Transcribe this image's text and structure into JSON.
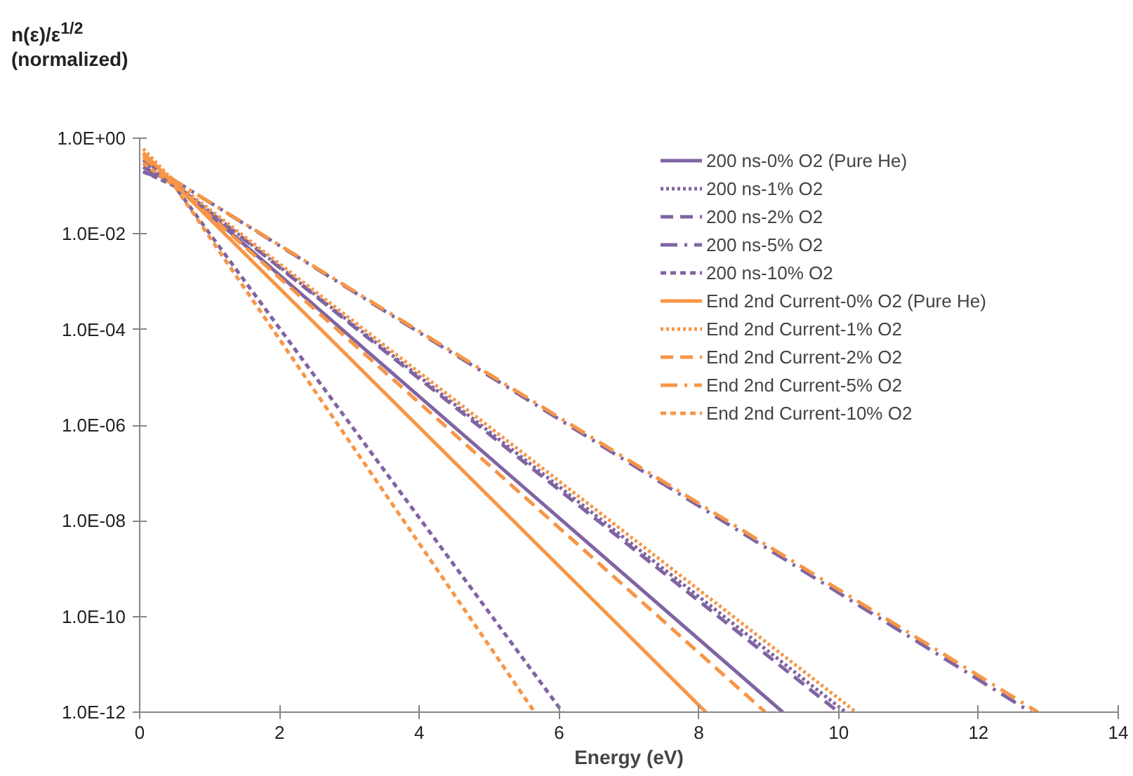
{
  "chart_data": {
    "type": "line",
    "xlabel": "Energy (eV)",
    "ylabel": "n(ε)/ε$^{1/2}$\n(normalized)",
    "log": "y",
    "xlim": [
      0,
      14
    ],
    "xticks": [
      0,
      2,
      4,
      6,
      8,
      10,
      12,
      14
    ],
    "ylim": [
      1e-12,
      1
    ],
    "yticks": [
      {
        "value": 1,
        "label": "1.0E+00"
      },
      {
        "value": 0.01,
        "label": "1.0E-02"
      },
      {
        "value": 0.0001,
        "label": "1.0E-04"
      },
      {
        "value": 1e-06,
        "label": "1.0E-06"
      },
      {
        "value": 1e-08,
        "label": "1.0E-08"
      },
      {
        "value": 1e-10,
        "label": "1.0E-10"
      },
      {
        "value": 1e-12,
        "label": "1.0E-12"
      }
    ],
    "grid": false,
    "legend": "top right",
    "marker": "none",
    "series": [
      {
        "name": "200 ns-0% O2 (Pure He)",
        "color": "#8064a2",
        "line_style": "solid",
        "x": [
          0.05,
          0.5,
          9.2
        ],
        "values": [
          0.25,
          0.11,
          1e-12
        ]
      },
      {
        "name": "200 ns-1% O2",
        "color": "#8064a2",
        "line_style": "dotted",
        "x": [
          0.05,
          0.5,
          10.1
        ],
        "values": [
          0.3,
          0.11,
          1e-12
        ]
      },
      {
        "name": "200 ns-2% O2",
        "color": "#8064a2",
        "line_style": "dashed",
        "x": [
          0.05,
          0.5,
          10.0
        ],
        "values": [
          0.2,
          0.11,
          1e-12
        ]
      },
      {
        "name": "200 ns-5% O2",
        "color": "#8064a2",
        "line_style": "dashdot",
        "x": [
          0.05,
          0.5,
          12.75
        ],
        "values": [
          0.35,
          0.13,
          1e-12
        ]
      },
      {
        "name": "200 ns-10% O2",
        "color": "#8064a2",
        "line_style": "shortdash",
        "x": [
          0.05,
          0.5,
          6.05
        ],
        "values": [
          0.2,
          0.1,
          1e-12
        ]
      },
      {
        "name": "End 2nd Current-0% O2 (Pure He)",
        "color": "#f79646",
        "line_style": "solid",
        "x": [
          0.05,
          0.5,
          8.1
        ],
        "values": [
          0.5,
          0.11,
          1e-12
        ]
      },
      {
        "name": "End 2nd Current-1% O2",
        "color": "#f79646",
        "line_style": "dotted",
        "x": [
          0.05,
          0.5,
          10.25
        ],
        "values": [
          0.6,
          0.12,
          1e-12
        ]
      },
      {
        "name": "End 2nd Current-2% O2",
        "color": "#f79646",
        "line_style": "dashed",
        "x": [
          0.05,
          0.5,
          8.95
        ],
        "values": [
          0.4,
          0.11,
          1e-12
        ]
      },
      {
        "name": "End 2nd Current-5% O2",
        "color": "#f79646",
        "line_style": "dashdot",
        "x": [
          0.05,
          0.5,
          12.85
        ],
        "values": [
          0.45,
          0.13,
          1e-12
        ]
      },
      {
        "name": "End 2nd Current-10% O2",
        "color": "#f79646",
        "line_style": "shortdash",
        "x": [
          0.05,
          0.5,
          5.65
        ],
        "values": [
          0.3,
          0.1,
          1e-12
        ]
      }
    ]
  }
}
